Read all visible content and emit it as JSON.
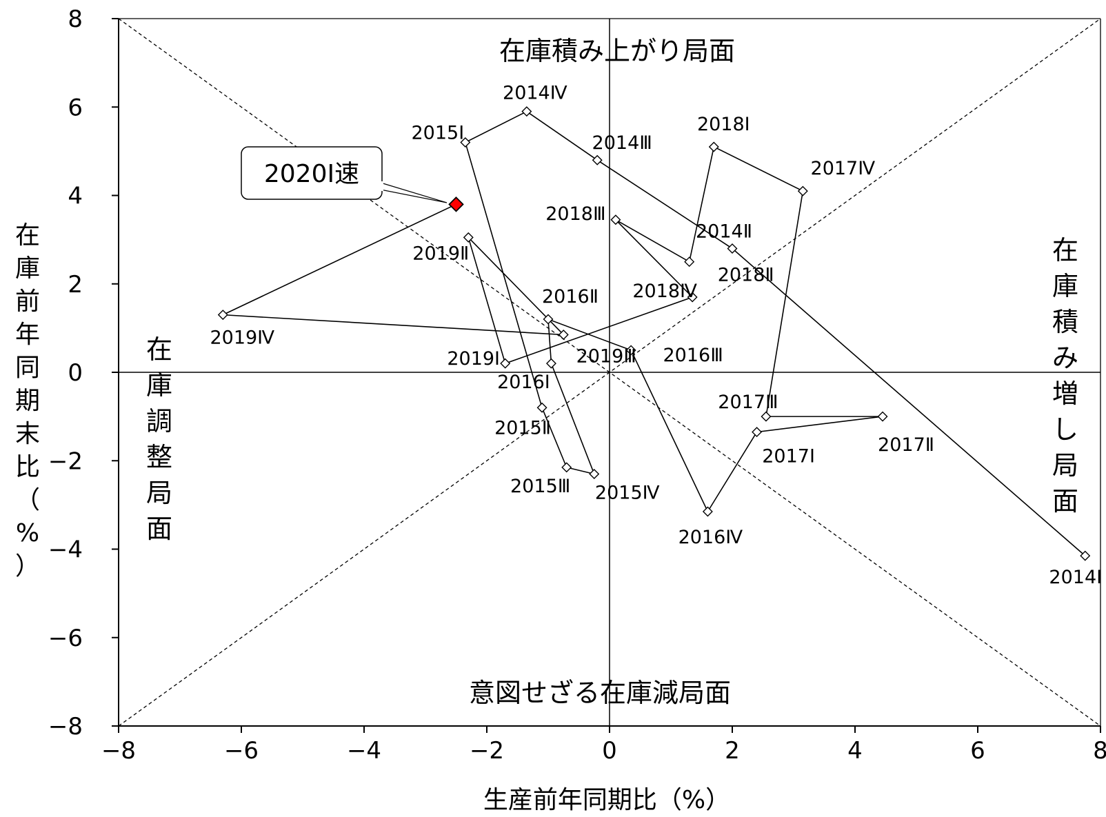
{
  "chart_data": {
    "type": "scatter",
    "xlabel": "生産前年同期比（%）",
    "ylabel": "在庫前年同期末比（%）",
    "xlim": [
      -8,
      8
    ],
    "ylim": [
      -8,
      8
    ],
    "x_ticks": [
      "−8",
      "−6",
      "−4",
      "−2",
      "0",
      "2",
      "4",
      "6",
      "8"
    ],
    "y_ticks": [
      "8",
      "6",
      "4",
      "2",
      "0",
      "−2",
      "−4",
      "−6",
      "−8"
    ],
    "phase_labels": {
      "top": "在庫積み上がり局面",
      "right": "在庫積み増し局面",
      "bottom": "意図せざる在庫減局面",
      "left": "在庫調整局面"
    },
    "callout": {
      "label": "2020Ⅰ速",
      "x": -2.5,
      "y": 3.8,
      "color": "#ff0000"
    },
    "series": [
      {
        "points": [
          {
            "label": "2014Ⅰ",
            "x": 7.75,
            "y": -4.15
          },
          {
            "label": "2014Ⅱ",
            "x": 2.0,
            "y": 2.8
          },
          {
            "label": "2014Ⅲ",
            "x": -0.2,
            "y": 4.8
          },
          {
            "label": "2014Ⅳ",
            "x": -1.35,
            "y": 5.9
          },
          {
            "label": "2015Ⅰ",
            "x": -2.35,
            "y": 5.2
          },
          {
            "label": "2015Ⅱ",
            "x": -1.1,
            "y": -0.8
          },
          {
            "label": "2015Ⅲ",
            "x": -0.7,
            "y": -2.15
          },
          {
            "label": "2015Ⅳ",
            "x": -0.25,
            "y": -2.3
          },
          {
            "label": "2016Ⅰ",
            "x": -0.95,
            "y": 0.2
          },
          {
            "label": "2016Ⅱ",
            "x": -1.0,
            "y": 1.2
          },
          {
            "label": "2016Ⅲ",
            "x": 0.35,
            "y": 0.5
          },
          {
            "label": "2016Ⅳ",
            "x": 1.6,
            "y": -3.15
          },
          {
            "label": "2017Ⅰ",
            "x": 2.4,
            "y": -1.35
          },
          {
            "label": "2017Ⅱ",
            "x": 4.45,
            "y": -1.0
          },
          {
            "label": "2017Ⅲ",
            "x": 2.55,
            "y": -1.0
          },
          {
            "label": "2017Ⅳ",
            "x": 3.15,
            "y": 4.1
          },
          {
            "label": "2018Ⅰ",
            "x": 1.7,
            "y": 5.1
          },
          {
            "label": "2018Ⅱ",
            "x": 1.3,
            "y": 2.5
          },
          {
            "label": "2018Ⅲ",
            "x": 0.1,
            "y": 3.45
          },
          {
            "label": "2018Ⅳ",
            "x": 1.35,
            "y": 1.7
          },
          {
            "label": "2019Ⅰ",
            "x": -1.7,
            "y": 0.2
          },
          {
            "label": "2019Ⅱ",
            "x": -2.3,
            "y": 3.05
          },
          {
            "label": "2019Ⅲ",
            "x": -0.75,
            "y": 0.85
          },
          {
            "label": "2019Ⅳ",
            "x": -6.3,
            "y": 1.3
          },
          {
            "label": "2020Ⅰ速",
            "x": -2.5,
            "y": 3.8
          }
        ]
      }
    ]
  }
}
